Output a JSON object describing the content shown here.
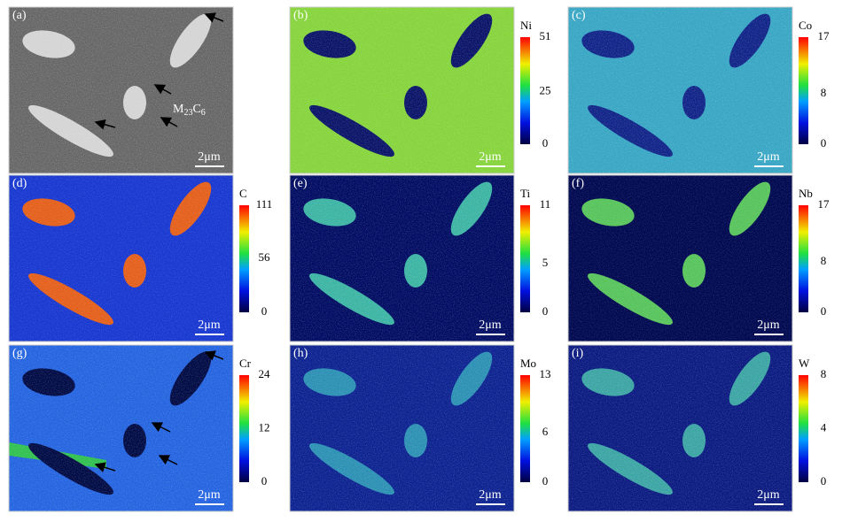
{
  "panels": [
    {
      "label": "(a)",
      "scale_bar": "2μm",
      "annotation": [
        "M",
        "23",
        "C",
        "6"
      ]
    },
    {
      "label": "(b)",
      "scale_bar": "2μm",
      "element": "Ni",
      "ticks": [
        51,
        25,
        0
      ]
    },
    {
      "label": "(c)",
      "scale_bar": "2μm",
      "element": "Co",
      "ticks": [
        17,
        8,
        0
      ]
    },
    {
      "label": "(d)",
      "scale_bar": "2μm",
      "element": "C",
      "ticks": [
        111,
        56,
        0
      ]
    },
    {
      "label": "(e)",
      "scale_bar": "2μm",
      "element": "Ti",
      "ticks": [
        11,
        5,
        0
      ]
    },
    {
      "label": "(f)",
      "scale_bar": "2μm",
      "element": "Nb",
      "ticks": [
        17,
        8,
        0
      ]
    },
    {
      "label": "(g)",
      "scale_bar": "2μm",
      "element": "Cr",
      "ticks": [
        24,
        12,
        0
      ]
    },
    {
      "label": "(h)",
      "scale_bar": "2μm",
      "element": "Mo",
      "ticks": [
        13,
        6,
        0
      ]
    },
    {
      "label": "(i)",
      "scale_bar": "2μm",
      "element": "W",
      "ticks": [
        8,
        4,
        0
      ]
    }
  ]
}
